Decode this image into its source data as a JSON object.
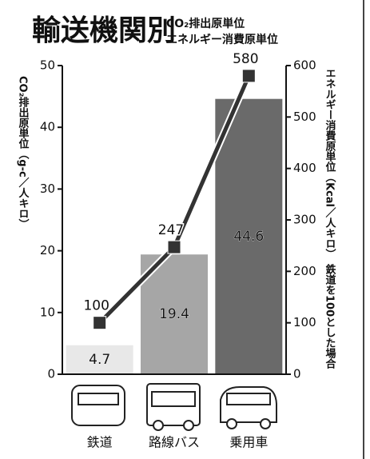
{
  "chart_data": {
    "type": "bar+line",
    "title": "輸送機関別",
    "subtitle": [
      "CO₂排出原単位",
      "エネルギー消費原単位"
    ],
    "y_label": "CO₂排出原単位（g-c／人キロ）",
    "y2_label": "エネルギー消費原単位（Kcal／人キロ）",
    "y2_note": "鉄道を100とした場合",
    "categories": [
      "鉄道",
      "路線バス",
      "乗用車"
    ],
    "series": [
      {
        "name": "CO₂排出原単位",
        "type": "bar",
        "colors": [
          "#e8e8e8",
          "#a6a6a6",
          "#6a6a6a"
        ],
        "values": [
          4.7,
          19.4,
          44.6
        ]
      },
      {
        "name": "エネルギー消費原単位",
        "type": "line",
        "axis": "y2",
        "color": "#333333",
        "values": [
          100,
          247,
          580
        ]
      }
    ],
    "ylim": [
      0,
      50
    ],
    "yticks": [
      0,
      10,
      20,
      30,
      40,
      50
    ],
    "y2lim": [
      0,
      600
    ],
    "y2ticks": [
      0,
      100,
      200,
      300,
      400,
      500,
      600
    ]
  }
}
